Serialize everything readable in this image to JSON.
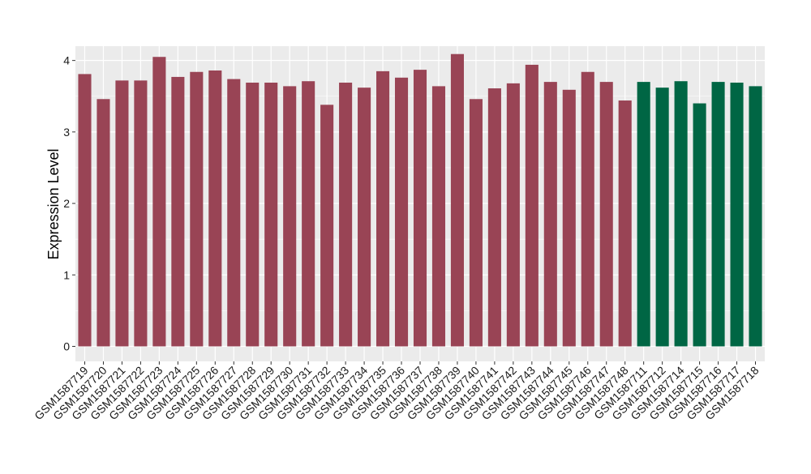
{
  "chart_data": {
    "type": "bar",
    "title": "",
    "xlabel": "",
    "ylabel": "Expression Level",
    "ylim": [
      0,
      4.2
    ],
    "yticks": [
      0,
      1,
      2,
      3,
      4
    ],
    "grid": true,
    "legend": "none",
    "background": "#EBEBEB",
    "grid_color": "#FFFFFF",
    "categories": [
      "GSM1587719",
      "GSM1587720",
      "GSM1587721",
      "GSM1587722",
      "GSM1587723",
      "GSM1587724",
      "GSM1587725",
      "GSM1587726",
      "GSM1587727",
      "GSM1587728",
      "GSM1587729",
      "GSM1587730",
      "GSM1587731",
      "GSM1587732",
      "GSM1587733",
      "GSM1587734",
      "GSM1587735",
      "GSM1587736",
      "GSM1587737",
      "GSM1587738",
      "GSM1587739",
      "GSM1587740",
      "GSM1587741",
      "GSM1587742",
      "GSM1587743",
      "GSM1587744",
      "GSM1587745",
      "GSM1587746",
      "GSM1587747",
      "GSM1587748",
      "GSM1587711",
      "GSM1587712",
      "GSM1587714",
      "GSM1587715",
      "GSM1587716",
      "GSM1587717",
      "GSM1587718"
    ],
    "values": [
      3.81,
      3.46,
      3.72,
      3.72,
      4.05,
      3.77,
      3.84,
      3.86,
      3.74,
      3.69,
      3.69,
      3.64,
      3.71,
      3.38,
      3.69,
      3.62,
      3.85,
      3.76,
      3.87,
      3.64,
      4.09,
      3.46,
      3.61,
      3.68,
      3.94,
      3.7,
      3.59,
      3.84,
      3.7,
      3.44,
      3.7,
      3.62,
      3.71,
      3.4,
      3.7,
      3.69,
      3.64
    ],
    "groups": [
      "a",
      "a",
      "a",
      "a",
      "a",
      "a",
      "a",
      "a",
      "a",
      "a",
      "a",
      "a",
      "a",
      "a",
      "a",
      "a",
      "a",
      "a",
      "a",
      "a",
      "a",
      "a",
      "a",
      "a",
      "a",
      "a",
      "a",
      "a",
      "a",
      "a",
      "b",
      "b",
      "b",
      "b",
      "b",
      "b",
      "b"
    ],
    "group_colors": {
      "a": "#994455",
      "b": "#006644"
    }
  }
}
